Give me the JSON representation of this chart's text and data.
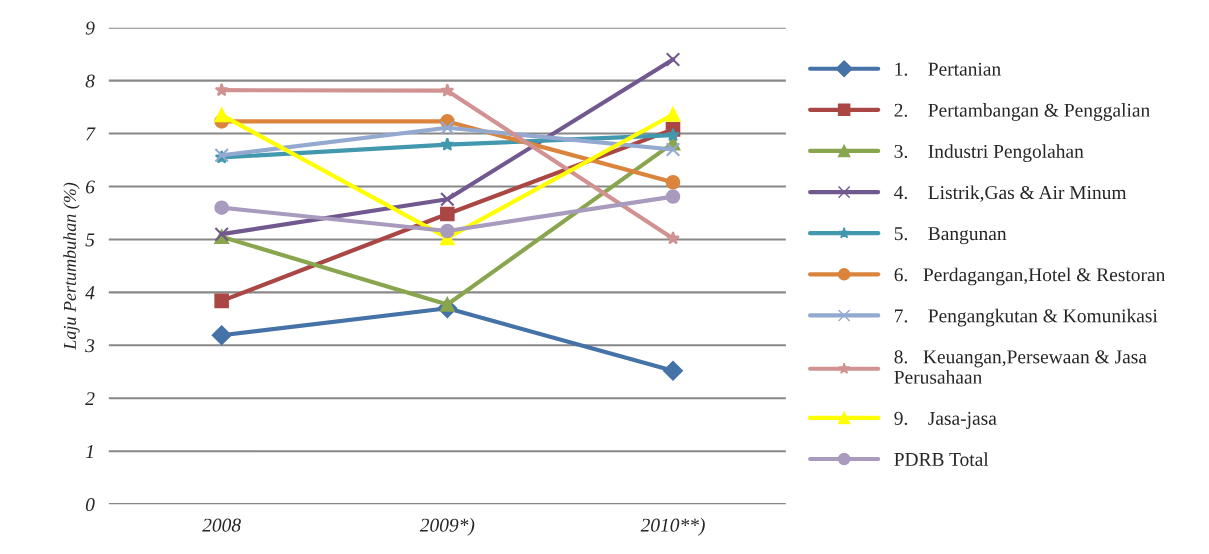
{
  "chart_data": {
    "type": "line",
    "ylabel": "Laju Pertumbuhan (%)",
    "categories": [
      "2008",
      "2009*)",
      "2010**)"
    ],
    "series": [
      {
        "name": "1.    Pertanian",
        "color": "#4572a7",
        "marker": "diamond",
        "values": [
          3.19,
          3.7,
          2.52
        ]
      },
      {
        "name": "2.    Pertambangan & Penggalian",
        "color": "#aa4643",
        "marker": "square",
        "values": [
          3.84,
          5.48,
          7.08
        ]
      },
      {
        "name": "3.    Industri Pengolahan",
        "color": "#89a54e",
        "marker": "triangle",
        "values": [
          5.05,
          3.77,
          6.82
        ]
      },
      {
        "name": "4.    Listrik,Gas & Air Minum",
        "color": "#71588f",
        "marker": "cross",
        "values": [
          5.1,
          5.76,
          8.4
        ]
      },
      {
        "name": "5.    Bangunan",
        "color": "#4198af",
        "marker": "star",
        "values": [
          6.55,
          6.79,
          6.97
        ]
      },
      {
        "name": "6.   Perdagangan,Hotel & Restoran",
        "color": "#db843d",
        "marker": "circle",
        "values": [
          7.23,
          7.23,
          6.08
        ]
      },
      {
        "name": "7.    Pengangkutan & Komunikasi",
        "color": "#93a9cf",
        "marker": "cross",
        "values": [
          6.59,
          7.11,
          6.7
        ]
      },
      {
        "name": "8.   Keuangan,Persewaan & Jasa\nPerusahaan",
        "color": "#d19392",
        "marker": "star",
        "values": [
          7.82,
          7.81,
          5.02
        ]
      },
      {
        "name": "9.    Jasa-jasa",
        "color": "#ffff00",
        "marker": "triangle",
        "values": [
          7.35,
          5.03,
          7.36
        ]
      },
      {
        "name": "PDRB Total",
        "color": "#a99bbd",
        "marker": "circle",
        "values": [
          5.6,
          5.16,
          5.81
        ]
      }
    ],
    "ylim": [
      0,
      9
    ],
    "yticks": [
      0,
      1,
      2,
      3,
      4,
      5,
      6,
      7,
      8,
      9
    ],
    "grid": "y",
    "legend": "right"
  }
}
